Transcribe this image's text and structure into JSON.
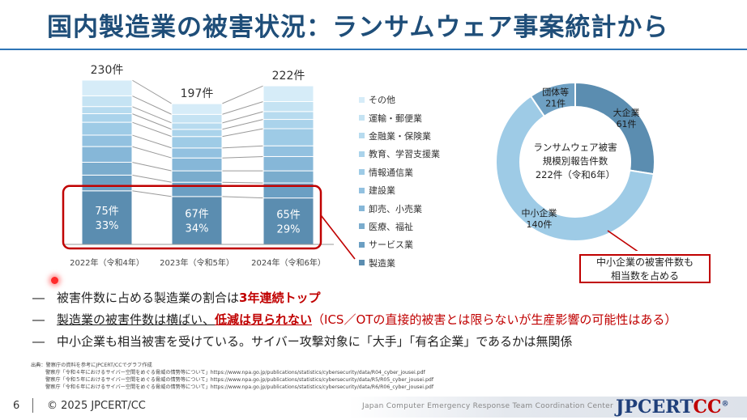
{
  "slide": {
    "title": "国内製造業の被害状況：ランサムウェア事案統計から",
    "page_number": "6",
    "copyright": "© 2025 JPCERT/CC",
    "footer_tagline": "Japan Computer Emergency Response Team Coordination Center",
    "logo": {
      "main": "JPCERT",
      "accent": "CC",
      "mark": "®"
    }
  },
  "chart_data": [
    {
      "type": "stacked-bar",
      "categories": [
        "2022年（令和4年）",
        "2023年（令和5年）",
        "2024年（令和6年）"
      ],
      "totals": [
        230,
        197,
        222
      ],
      "total_labels": [
        "230件",
        "197件",
        "222件"
      ],
      "ylim": [
        0,
        230
      ],
      "series": [
        {
          "name": "製造業",
          "values": [
            75,
            67,
            65
          ],
          "color": "#5b8db0"
        },
        {
          "name": "サービス業",
          "values": [
            22,
            20,
            21
          ],
          "color": "#6b9fc3"
        },
        {
          "name": "医療、福祉",
          "values": [
            18,
            16,
            17
          ],
          "color": "#7aaccd"
        },
        {
          "name": "卸売、小売業",
          "values": [
            22,
            18,
            20
          ],
          "color": "#86b7d8"
        },
        {
          "name": "建設業",
          "values": [
            16,
            14,
            15
          ],
          "color": "#92c1e0"
        },
        {
          "name": "情報通信業",
          "values": [
            18,
            16,
            24
          ],
          "color": "#9ecbe6"
        },
        {
          "name": "教育、学習支援業",
          "values": [
            12,
            10,
            13
          ],
          "color": "#aad3eb"
        },
        {
          "name": "金融業・保険業",
          "values": [
            10,
            9,
            11
          ],
          "color": "#b7dbef"
        },
        {
          "name": "運輸・郵便業",
          "values": [
            15,
            12,
            14
          ],
          "color": "#c5e3f3"
        },
        {
          "name": "その他",
          "values": [
            22,
            15,
            22
          ],
          "color": "#d6ecf8"
        }
      ],
      "highlight": {
        "counts": [
          "75件",
          "67件",
          "65件"
        ],
        "percents": [
          "33%",
          "34%",
          "29%"
        ]
      }
    },
    {
      "type": "pie",
      "center_label": [
        "ランサムウェア被害",
        "規模別報告件数",
        "222件（令和6年）"
      ],
      "slices": [
        {
          "name": "大企業",
          "value": 61,
          "label": "61件",
          "color": "#5b8db0"
        },
        {
          "name": "中小企業",
          "value": 140,
          "label": "140件",
          "color": "#9ecbe6"
        },
        {
          "name": "団体等",
          "value": 21,
          "label": "21件",
          "color": "#6ea0c3"
        }
      ]
    }
  ],
  "callout": {
    "line1": "中小企業の被害件数も",
    "line2": "相当数を占める"
  },
  "bullets": [
    {
      "dash": "―",
      "parts": [
        {
          "t": "被害件数に占める製造業の割合は",
          "s": ""
        },
        {
          "t": "3年連続トップ",
          "s": "red"
        }
      ]
    },
    {
      "dash": "―",
      "parts": [
        {
          "t": "製造業の被害件数は横ばい、",
          "s": "u"
        },
        {
          "t": "低減は見られない",
          "s": "red u"
        },
        {
          "t": "（ICS／OTの直接的被害とは限らないが生産影響の可能性はある）",
          "s": "red-plain"
        }
      ]
    },
    {
      "dash": "―",
      "parts": [
        {
          "t": "中小企業も相当被害を受けている。サイバー攻撃対象に「大手」「有名企業」であるかは無関係",
          "s": ""
        }
      ]
    }
  ],
  "sources": [
    "出典：警察庁の資料を参考にJPCERT/CCでグラフ作成",
    "警察庁「令和４年におけるサイバー空間をめぐる脅威の情勢等について」https://www.npa.go.jp/publications/statistics/cybersecurity/data/R04_cyber_jousei.pdf",
    "警察庁「令和５年におけるサイバー空間をめぐる脅威の情勢等について」https://www.npa.go.jp/publications/statistics/cybersecurity/data/R5/R05_cyber_jousei.pdf",
    "警察庁「令和６年におけるサイバー空間をめぐる脅威の情勢等について」https://www.npa.go.jp/publications/statistics/cybersecurity/data/R6/R06_cyber_jousei.pdf"
  ]
}
